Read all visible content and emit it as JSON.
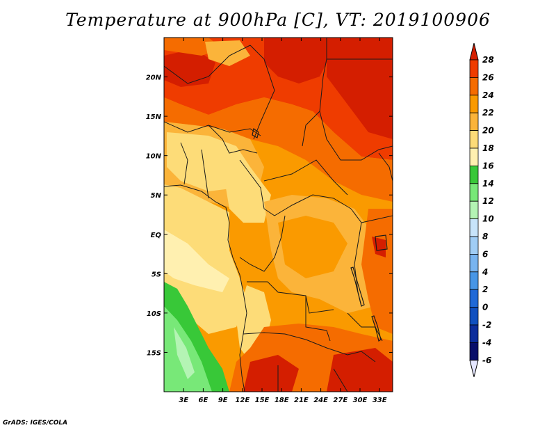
{
  "title": "Temperature at 900hPa [C], VT: 2019100906",
  "credit": "GrADS: IGES/COLA",
  "map": {
    "lon_range": [
      0,
      35
    ],
    "lat_range": [
      -20,
      25
    ],
    "x_ticks": [
      "3E",
      "6E",
      "9E",
      "12E",
      "15E",
      "18E",
      "21E",
      "24E",
      "27E",
      "30E",
      "33E"
    ],
    "x_tick_values": [
      3,
      6,
      9,
      12,
      15,
      18,
      21,
      24,
      27,
      30,
      33
    ],
    "y_ticks": [
      "20N",
      "15N",
      "10N",
      "5N",
      "EQ",
      "5S",
      "10S",
      "15S"
    ],
    "y_tick_values": [
      20,
      15,
      10,
      5,
      0,
      -5,
      -10,
      -15
    ]
  },
  "colorbar": {
    "levels": [
      "28",
      "26",
      "24",
      "22",
      "20",
      "18",
      "16",
      "14",
      "12",
      "10",
      "8",
      "6",
      "4",
      "2",
      "0",
      "-2",
      "-4",
      "-6"
    ],
    "colors": [
      "#d41e00",
      "#ef3c00",
      "#f56c00",
      "#fa9a00",
      "#fbb43a",
      "#fddc78",
      "#fff0b0",
      "#38c838",
      "#78e878",
      "#b4f4b4",
      "#c8e4fa",
      "#a0cdf5",
      "#78b4f0",
      "#4896e6",
      "#2069d7",
      "#1050c0",
      "#0c2d9c",
      "#080e6a"
    ],
    "top_arrow_color": "#d41e00",
    "bottom_arrow_color": "#e4e6ff"
  }
}
